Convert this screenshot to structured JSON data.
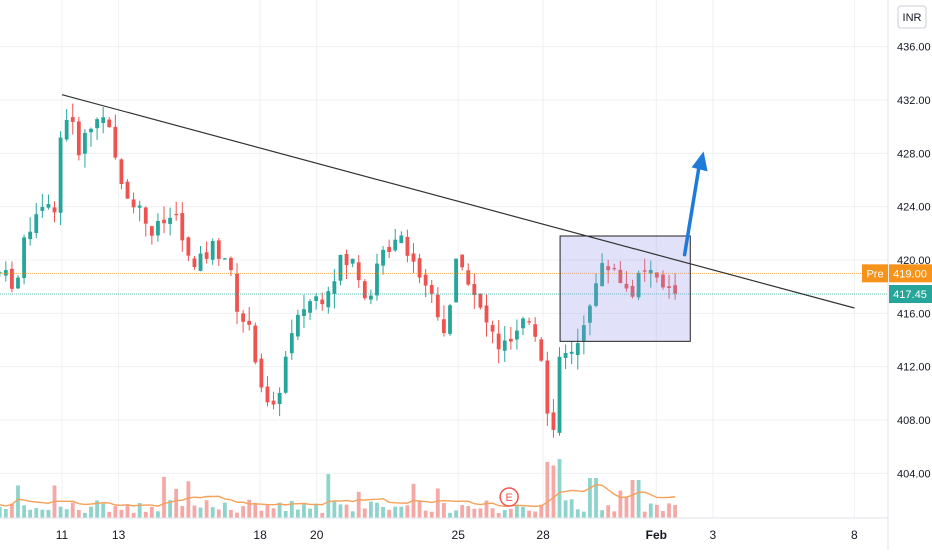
{
  "chart_data": {
    "type": "candlestick",
    "currency": "INR",
    "y_ticks": [
      "436.00",
      "432.00",
      "428.00",
      "424.00",
      "420.00",
      "416.00",
      "412.00",
      "408.00",
      "404.00"
    ],
    "y_tick_values": [
      436,
      432,
      428,
      424,
      420,
      416,
      412,
      408,
      404
    ],
    "x_ticks": [
      {
        "label": "11",
        "day": 0
      },
      {
        "label": "13",
        "day": 2
      },
      {
        "label": "18",
        "day": 7
      },
      {
        "label": "20",
        "day": 9
      },
      {
        "label": "25",
        "day": 14
      },
      {
        "label": "28",
        "day": 17
      },
      {
        "label": "Feb",
        "day": 21
      },
      {
        "label": "3",
        "day": 23
      },
      {
        "label": "8",
        "day": 28
      }
    ],
    "ylim": [
      401,
      438
    ],
    "price_labels": [
      {
        "prefix": "Pre",
        "value": "419.00",
        "price": 419.0,
        "color": "#f7931a"
      },
      {
        "prefix": "",
        "value": "417.45",
        "price": 417.45,
        "color": "#26a69a"
      }
    ],
    "trendline": {
      "start": {
        "day": 0.0,
        "price": 432.4
      },
      "end": {
        "day": 28.0,
        "price": 416.4
      }
    },
    "highlight_box": {
      "day_start": 17.6,
      "day_end": 22.2,
      "price_low": 413.9,
      "price_high": 421.8
    },
    "arrow": {
      "from": {
        "day": 22.0,
        "price": 420.4
      },
      "to": {
        "day": 22.6,
        "price": 428.0
      }
    },
    "earnings_marker": "E",
    "colors": {
      "up": "#26a69a",
      "down": "#ef5350",
      "trendline": "#333333",
      "box_fill": "#9598e8",
      "box_stroke": "#222222",
      "arrow": "#1e7bd8",
      "volume_ma": "#f5a15a",
      "grid": "#eef0f3",
      "text": "#131722"
    }
  }
}
